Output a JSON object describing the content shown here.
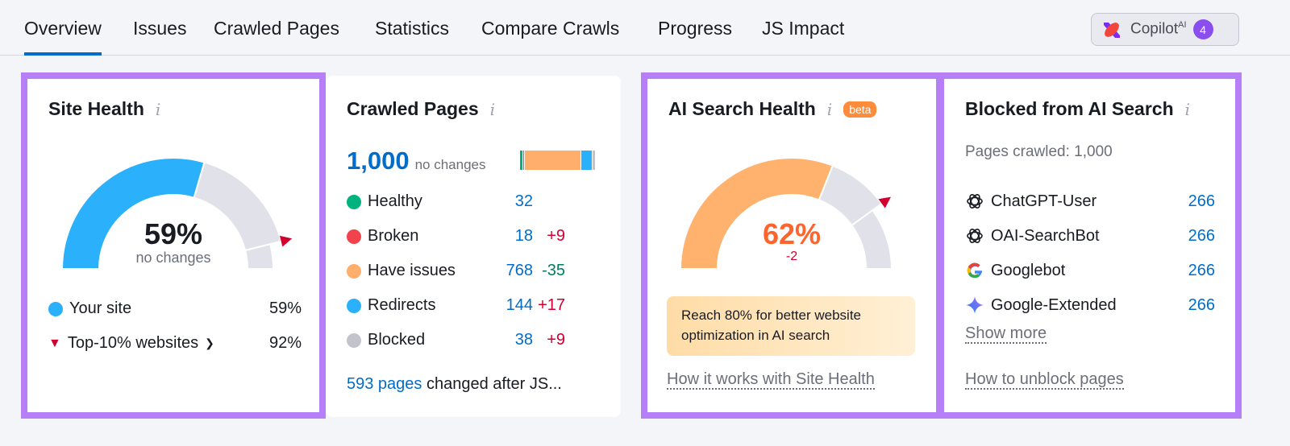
{
  "tabs": [
    "Overview",
    "Issues",
    "Crawled Pages",
    "Statistics",
    "Compare Crawls",
    "Progress",
    "JS Impact"
  ],
  "copilot": {
    "label": "Copilot",
    "sup": "AI",
    "count": "4"
  },
  "site_health": {
    "title": "Site Health",
    "value_pct": 59,
    "value": "59%",
    "sub": "no changes",
    "top10_pct": 92,
    "legend": [
      {
        "label": "Your site",
        "value": "59%",
        "color": "#2bb0fc"
      },
      {
        "label": "Top-10% websites",
        "value": "92%",
        "color": "#d1002f"
      }
    ],
    "colors": {
      "fill": "#2bb0fc",
      "rest": "#e0e1e9",
      "marker": "#d1002f"
    }
  },
  "crawled": {
    "title": "Crawled Pages",
    "total": "1,000",
    "sub": "no changes",
    "rows": [
      {
        "label": "Healthy",
        "value": "32",
        "delta": "",
        "color": "#00b37e",
        "count": 32
      },
      {
        "label": "Broken",
        "value": "18",
        "delta": "+9",
        "color": "#f2424c",
        "count": 18
      },
      {
        "label": "Have issues",
        "value": "768",
        "delta": "-35",
        "color": "#ffae6b",
        "count": 768
      },
      {
        "label": "Redirects",
        "value": "144",
        "delta": "+17",
        "color": "#2bb0fc",
        "count": 144
      },
      {
        "label": "Blocked",
        "value": "38",
        "delta": "+9",
        "color": "#c2c4cc",
        "count": 38
      }
    ],
    "footer_link": "593 pages",
    "footer_text": "changed after JS..."
  },
  "ai_health": {
    "title": "AI Search Health",
    "badge": "beta",
    "value_pct": 62,
    "value": "62%",
    "delta": "-2",
    "target_pct": 80,
    "tip": "Reach 80% for better website optimization in AI search",
    "link": "How it works with Site Health",
    "colors": {
      "fill": "#ffb26e",
      "rest": "#e0e1e9",
      "marker": "#d1002f",
      "value": "#ff642d"
    }
  },
  "blocked": {
    "title": "Blocked from AI Search",
    "sub": "Pages crawled: 1,000",
    "rows": [
      {
        "label": "ChatGPT-User",
        "value": "266",
        "icon": "openai-icon"
      },
      {
        "label": "OAI-SearchBot",
        "value": "266",
        "icon": "openai-icon"
      },
      {
        "label": "Googlebot",
        "value": "266",
        "icon": "google-icon"
      },
      {
        "label": "Google-Extended",
        "value": "266",
        "icon": "gemini-icon"
      }
    ],
    "show_more": "Show more",
    "link": "How to unblock pages"
  }
}
